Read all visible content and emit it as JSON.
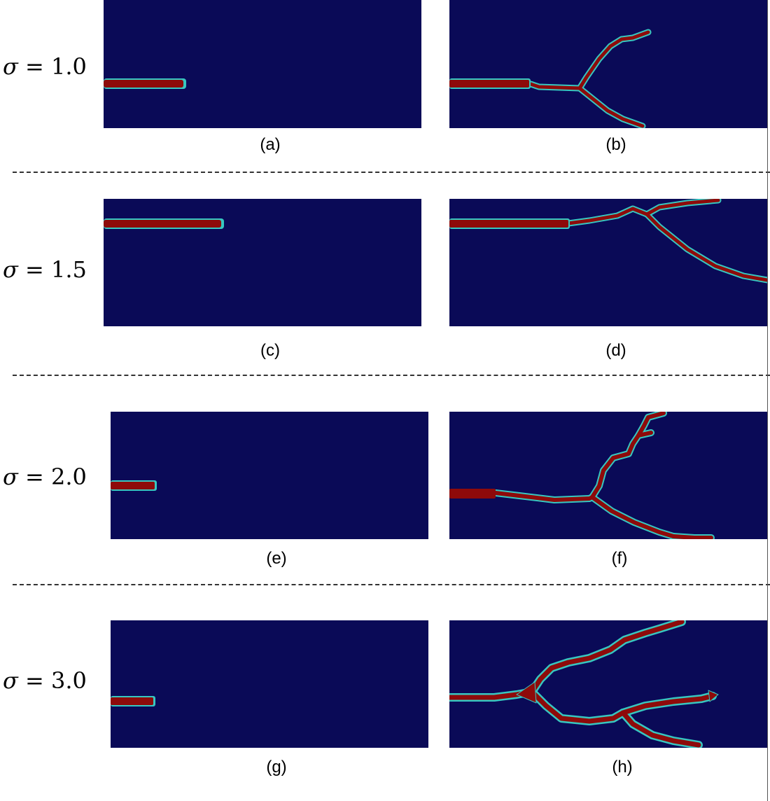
{
  "figure": {
    "rows": [
      {
        "sigma_symbol": "σ",
        "equals": "=",
        "sigma_value": "1.0",
        "left_caption": "(a)",
        "right_caption": "(b)"
      },
      {
        "sigma_symbol": "σ",
        "equals": "=",
        "sigma_value": "1.5",
        "left_caption": "(c)",
        "right_caption": "(d)"
      },
      {
        "sigma_symbol": "σ",
        "equals": "=",
        "sigma_value": "2.0",
        "left_caption": "(e)",
        "right_caption": "(f)"
      },
      {
        "sigma_symbol": "σ",
        "equals": "=",
        "sigma_value": "3.0",
        "left_caption": "(g)",
        "right_caption": "(h)"
      }
    ],
    "colors": {
      "background_field": "#0a0a57",
      "crack": "#8e0a0a",
      "crack_edge": "#37c7c0"
    }
  }
}
